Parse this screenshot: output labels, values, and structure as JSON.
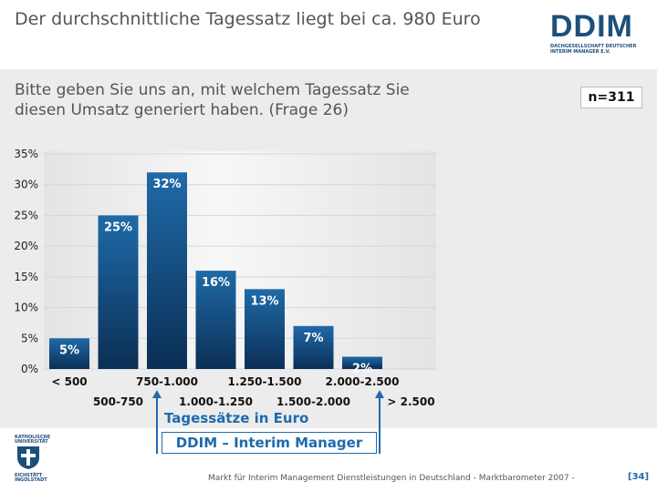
{
  "header": {
    "title": "Der durchschnittliche Tagessatz liegt bei ca. 980 Euro",
    "logo_text": "DDIM",
    "logo_subtitle": "DACHGESELLSCHAFT DEUTSCHER INTERIM MANAGER E.V."
  },
  "question": "Bitte geben Sie uns an, mit welchem Tagessatz Sie diesen Umsatz generiert haben. (Frage 26)",
  "sample_size": "n=311",
  "chart_data": {
    "type": "bar",
    "categories": [
      "< 500",
      "500-750",
      "750-1.000",
      "1.000-1.250",
      "1.250-1.500",
      "1.500-2.000",
      "2.000-2.500",
      "> 2.500"
    ],
    "values": [
      5,
      25,
      32,
      16,
      13,
      7,
      2,
      null
    ],
    "data_labels": [
      "5%",
      "25%",
      "32%",
      "16%",
      "13%",
      "7%",
      "2%",
      ""
    ],
    "y_ticks": [
      "0%",
      "5%",
      "10%",
      "15%",
      "20%",
      "25%",
      "30%",
      "35%"
    ],
    "ylim": [
      0,
      35
    ],
    "xlabel": "Tagessätze in Euro",
    "ylabel": "",
    "grid": true,
    "colors": {
      "bar_top": "#1f6aa8",
      "bar_bottom": "#0b2f55",
      "label": "#ffffff"
    }
  },
  "annotation": "DDIM – Interim Manager",
  "footer": {
    "university_top": "KATHOLISCHE UNIVERSITÄT",
    "university_bottom": "EICHSTÄTT INGOLSTADT",
    "text": "Markt für Interim Management Dienstleistungen in Deutschland - Marktbarometer 2007 -",
    "page": "[34]"
  }
}
